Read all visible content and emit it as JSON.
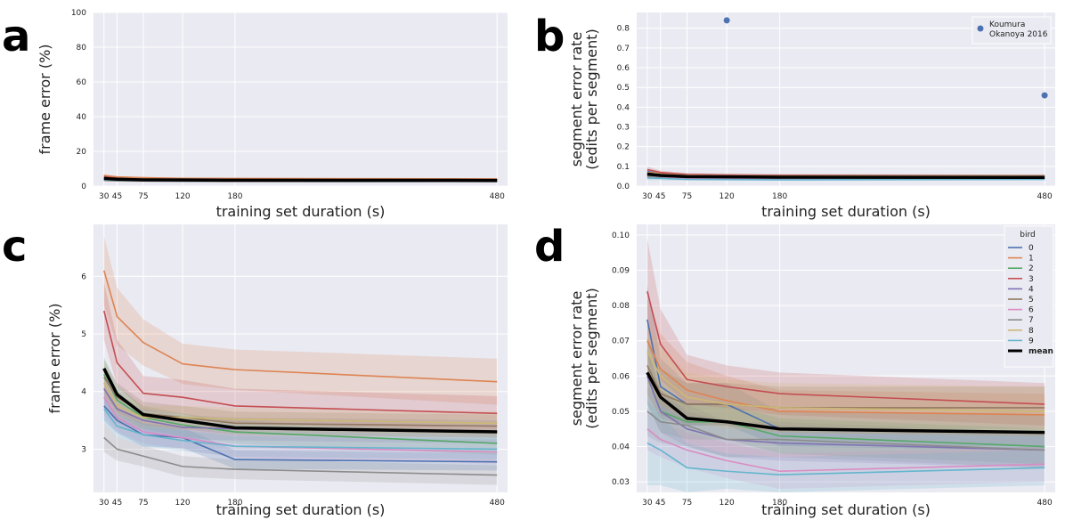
{
  "chart_data": [
    {
      "panel": "a",
      "type": "line",
      "xlabel": "training set duration (s)",
      "ylabel": "frame error (%)",
      "xticks": [
        30,
        45,
        75,
        120,
        180,
        480
      ],
      "yticks": [
        0,
        20,
        40,
        60,
        80,
        100
      ],
      "ylim": [
        0,
        100
      ],
      "x": [
        30,
        45,
        75,
        120,
        180,
        480
      ],
      "series": [
        {
          "name": "0",
          "color": "#4c72b0",
          "values": [
            3.75,
            3.5,
            3.25,
            3.2,
            2.82,
            2.78
          ],
          "band": [
            0.25,
            0.22,
            0.2,
            0.18,
            0.16,
            0.15
          ]
        },
        {
          "name": "1",
          "color": "#dd8452",
          "values": [
            6.1,
            5.3,
            4.85,
            4.48,
            4.38,
            4.17
          ],
          "band": [
            0.6,
            0.5,
            0.4,
            0.35,
            0.35,
            0.4
          ]
        },
        {
          "name": "2",
          "color": "#55a868",
          "values": [
            4.3,
            3.85,
            3.55,
            3.42,
            3.3,
            3.1
          ],
          "band": [
            0.3,
            0.25,
            0.2,
            0.2,
            0.2,
            0.2
          ]
        },
        {
          "name": "3",
          "color": "#c44e52",
          "values": [
            5.4,
            4.5,
            3.97,
            3.9,
            3.75,
            3.62
          ],
          "band": [
            0.5,
            0.4,
            0.3,
            0.3,
            0.3,
            0.3
          ]
        },
        {
          "name": "4",
          "color": "#8172b3",
          "values": [
            4.05,
            3.7,
            3.5,
            3.38,
            3.35,
            3.3
          ],
          "band": [
            0.3,
            0.25,
            0.2,
            0.2,
            0.2,
            0.2
          ]
        },
        {
          "name": "5",
          "color": "#937860",
          "values": [
            4.25,
            3.9,
            3.62,
            3.55,
            3.45,
            3.4
          ],
          "band": [
            0.3,
            0.25,
            0.2,
            0.2,
            0.2,
            0.2
          ]
        },
        {
          "name": "6",
          "color": "#da8bc3",
          "values": [
            3.9,
            3.55,
            3.3,
            3.2,
            3.05,
            2.95
          ],
          "band": [
            0.3,
            0.25,
            0.2,
            0.2,
            0.2,
            0.2
          ]
        },
        {
          "name": "7",
          "color": "#8c8c8c",
          "values": [
            3.2,
            3.0,
            2.88,
            2.7,
            2.65,
            2.55
          ],
          "band": [
            0.25,
            0.2,
            0.18,
            0.18,
            0.17,
            0.17
          ]
        },
        {
          "name": "8",
          "color": "#ccb974",
          "values": [
            4.15,
            3.75,
            3.55,
            3.55,
            3.52,
            3.45
          ],
          "band": [
            0.3,
            0.25,
            0.2,
            0.2,
            0.2,
            0.2
          ]
        },
        {
          "name": "9",
          "color": "#64b5cd",
          "values": [
            3.7,
            3.4,
            3.25,
            3.15,
            3.05,
            3.0
          ],
          "band": [
            0.25,
            0.2,
            0.2,
            0.18,
            0.18,
            0.18
          ]
        },
        {
          "name": "mean",
          "color": "#000000",
          "values": [
            4.4,
            3.95,
            3.6,
            3.5,
            3.37,
            3.3
          ],
          "band": [
            0,
            0,
            0,
            0,
            0,
            0
          ]
        }
      ]
    },
    {
      "panel": "b",
      "type": "line",
      "xlabel": "training set duration (s)",
      "ylabel": "segment error rate\n(edits per segment)",
      "xticks": [
        30,
        45,
        75,
        120,
        180,
        480
      ],
      "yticks": [
        0.0,
        0.1,
        0.2,
        0.3,
        0.4,
        0.5,
        0.6,
        0.7,
        0.8
      ],
      "ylim": [
        0,
        0.88
      ],
      "x": [
        30,
        45,
        75,
        120,
        180,
        480
      ],
      "series": [
        {
          "name": "0",
          "color": "#4c72b0",
          "values": [
            0.076,
            0.057,
            0.052,
            0.052,
            0.045,
            0.044
          ],
          "band": [
            0.01,
            0.008,
            0.006,
            0.006,
            0.005,
            0.005
          ]
        },
        {
          "name": "1",
          "color": "#dd8452",
          "values": [
            0.07,
            0.062,
            0.056,
            0.053,
            0.05,
            0.049
          ],
          "band": [
            0.012,
            0.01,
            0.008,
            0.007,
            0.006,
            0.006
          ]
        },
        {
          "name": "2",
          "color": "#55a868",
          "values": [
            0.06,
            0.05,
            0.047,
            0.047,
            0.043,
            0.04
          ],
          "band": [
            0.008,
            0.006,
            0.005,
            0.005,
            0.005,
            0.005
          ]
        },
        {
          "name": "3",
          "color": "#c44e52",
          "values": [
            0.084,
            0.069,
            0.059,
            0.057,
            0.055,
            0.052
          ],
          "band": [
            0.015,
            0.01,
            0.007,
            0.006,
            0.006,
            0.006
          ]
        },
        {
          "name": "4",
          "color": "#8172b3",
          "values": [
            0.06,
            0.05,
            0.045,
            0.042,
            0.041,
            0.039
          ],
          "band": [
            0.008,
            0.006,
            0.005,
            0.005,
            0.005,
            0.005
          ]
        },
        {
          "name": "5",
          "color": "#937860",
          "values": [
            0.063,
            0.055,
            0.052,
            0.052,
            0.051,
            0.051
          ],
          "band": [
            0.008,
            0.007,
            0.006,
            0.006,
            0.006,
            0.006
          ]
        },
        {
          "name": "6",
          "color": "#da8bc3",
          "values": [
            0.045,
            0.042,
            0.039,
            0.036,
            0.033,
            0.035
          ],
          "band": [
            0.006,
            0.005,
            0.005,
            0.005,
            0.005,
            0.005
          ]
        },
        {
          "name": "7",
          "color": "#8c8c8c",
          "values": [
            0.05,
            0.047,
            0.046,
            0.042,
            0.042,
            0.039
          ],
          "band": [
            0.007,
            0.006,
            0.006,
            0.005,
            0.005,
            0.005
          ]
        },
        {
          "name": "8",
          "color": "#ccb974",
          "values": [
            0.067,
            0.06,
            0.054,
            0.052,
            0.051,
            0.05
          ],
          "band": [
            0.009,
            0.008,
            0.007,
            0.007,
            0.007,
            0.007
          ]
        },
        {
          "name": "9",
          "color": "#64b5cd",
          "values": [
            0.041,
            0.039,
            0.034,
            0.033,
            0.032,
            0.034
          ],
          "band": [
            0.012,
            0.01,
            0.007,
            0.005,
            0.005,
            0.005
          ]
        },
        {
          "name": "mean",
          "color": "#000000",
          "values": [
            0.061,
            0.054,
            0.048,
            0.047,
            0.045,
            0.044
          ],
          "band": [
            0,
            0,
            0,
            0,
            0,
            0
          ]
        }
      ],
      "scatter": {
        "name": "Koumura\nOkanoya 2016",
        "color": "#4c72b0",
        "points": [
          [
            120,
            0.84
          ],
          [
            480,
            0.46
          ]
        ]
      }
    },
    {
      "panel": "c",
      "type": "line",
      "xlabel": "training set duration (s)",
      "ylabel": "frame error (%)",
      "xticks": [
        30,
        45,
        75,
        120,
        180,
        480
      ],
      "yticks": [
        3,
        4,
        5,
        6
      ],
      "ylim": [
        2.25,
        6.9
      ],
      "x": [
        30,
        45,
        75,
        120,
        180,
        480
      ],
      "series": [
        {
          "name": "0",
          "color": "#4c72b0",
          "values": [
            3.75,
            3.5,
            3.25,
            3.2,
            2.82,
            2.78
          ],
          "band": [
            0.25,
            0.22,
            0.2,
            0.18,
            0.16,
            0.15
          ]
        },
        {
          "name": "1",
          "color": "#dd8452",
          "values": [
            6.1,
            5.3,
            4.85,
            4.48,
            4.38,
            4.17
          ],
          "band": [
            0.6,
            0.5,
            0.4,
            0.35,
            0.35,
            0.4
          ]
        },
        {
          "name": "2",
          "color": "#55a868",
          "values": [
            4.3,
            3.85,
            3.55,
            3.42,
            3.3,
            3.1
          ],
          "band": [
            0.3,
            0.25,
            0.2,
            0.2,
            0.2,
            0.2
          ]
        },
        {
          "name": "3",
          "color": "#c44e52",
          "values": [
            5.4,
            4.5,
            3.97,
            3.9,
            3.75,
            3.62
          ],
          "band": [
            0.5,
            0.4,
            0.3,
            0.3,
            0.3,
            0.3
          ]
        },
        {
          "name": "4",
          "color": "#8172b3",
          "values": [
            4.05,
            3.7,
            3.5,
            3.38,
            3.35,
            3.3
          ],
          "band": [
            0.3,
            0.25,
            0.2,
            0.2,
            0.2,
            0.2
          ]
        },
        {
          "name": "5",
          "color": "#937860",
          "values": [
            4.25,
            3.9,
            3.62,
            3.55,
            3.45,
            3.4
          ],
          "band": [
            0.3,
            0.25,
            0.2,
            0.2,
            0.2,
            0.2
          ]
        },
        {
          "name": "6",
          "color": "#da8bc3",
          "values": [
            3.9,
            3.55,
            3.3,
            3.2,
            3.05,
            2.95
          ],
          "band": [
            0.3,
            0.25,
            0.2,
            0.2,
            0.2,
            0.2
          ]
        },
        {
          "name": "7",
          "color": "#8c8c8c",
          "values": [
            3.2,
            3.0,
            2.88,
            2.7,
            2.65,
            2.55
          ],
          "band": [
            0.25,
            0.2,
            0.18,
            0.18,
            0.17,
            0.17
          ]
        },
        {
          "name": "8",
          "color": "#ccb974",
          "values": [
            4.15,
            3.75,
            3.55,
            3.55,
            3.52,
            3.45
          ],
          "band": [
            0.3,
            0.25,
            0.2,
            0.2,
            0.2,
            0.2
          ]
        },
        {
          "name": "9",
          "color": "#64b5cd",
          "values": [
            3.7,
            3.4,
            3.25,
            3.15,
            3.05,
            3.0
          ],
          "band": [
            0.25,
            0.2,
            0.2,
            0.18,
            0.18,
            0.18
          ]
        },
        {
          "name": "mean",
          "color": "#000000",
          "values": [
            4.4,
            3.95,
            3.6,
            3.5,
            3.37,
            3.3
          ],
          "band": [
            0,
            0,
            0,
            0,
            0,
            0
          ]
        }
      ]
    },
    {
      "panel": "d",
      "type": "line",
      "xlabel": "training set duration (s)",
      "ylabel": "segment error rate\n(edits per segment)",
      "xticks": [
        30,
        45,
        75,
        120,
        180,
        480
      ],
      "yticks": [
        0.03,
        0.04,
        0.05,
        0.06,
        0.07,
        0.08,
        0.09,
        0.1
      ],
      "ylim": [
        0.027,
        0.103
      ],
      "x": [
        30,
        45,
        75,
        120,
        180,
        480
      ],
      "legend_title": "bird",
      "legend_position": "upper-right",
      "series": [
        {
          "name": "0",
          "color": "#4c72b0",
          "values": [
            0.076,
            0.057,
            0.052,
            0.052,
            0.045,
            0.044
          ],
          "band": [
            0.01,
            0.008,
            0.006,
            0.006,
            0.005,
            0.005
          ]
        },
        {
          "name": "1",
          "color": "#dd8452",
          "values": [
            0.07,
            0.062,
            0.056,
            0.053,
            0.05,
            0.049
          ],
          "band": [
            0.012,
            0.01,
            0.008,
            0.007,
            0.006,
            0.006
          ]
        },
        {
          "name": "2",
          "color": "#55a868",
          "values": [
            0.06,
            0.05,
            0.047,
            0.047,
            0.043,
            0.04
          ],
          "band": [
            0.008,
            0.006,
            0.005,
            0.005,
            0.005,
            0.005
          ]
        },
        {
          "name": "3",
          "color": "#c44e52",
          "values": [
            0.084,
            0.069,
            0.059,
            0.057,
            0.055,
            0.052
          ],
          "band": [
            0.015,
            0.01,
            0.007,
            0.006,
            0.006,
            0.006
          ]
        },
        {
          "name": "4",
          "color": "#8172b3",
          "values": [
            0.06,
            0.05,
            0.045,
            0.042,
            0.041,
            0.039
          ],
          "band": [
            0.008,
            0.006,
            0.005,
            0.005,
            0.005,
            0.005
          ]
        },
        {
          "name": "5",
          "color": "#937860",
          "values": [
            0.063,
            0.055,
            0.052,
            0.052,
            0.051,
            0.051
          ],
          "band": [
            0.008,
            0.007,
            0.006,
            0.006,
            0.006,
            0.006
          ]
        },
        {
          "name": "6",
          "color": "#da8bc3",
          "values": [
            0.045,
            0.042,
            0.039,
            0.036,
            0.033,
            0.035
          ],
          "band": [
            0.006,
            0.005,
            0.005,
            0.005,
            0.005,
            0.005
          ]
        },
        {
          "name": "7",
          "color": "#8c8c8c",
          "values": [
            0.05,
            0.047,
            0.046,
            0.042,
            0.042,
            0.039
          ],
          "band": [
            0.007,
            0.006,
            0.006,
            0.005,
            0.005,
            0.005
          ]
        },
        {
          "name": "8",
          "color": "#ccb974",
          "values": [
            0.067,
            0.06,
            0.054,
            0.052,
            0.051,
            0.05
          ],
          "band": [
            0.009,
            0.008,
            0.007,
            0.007,
            0.007,
            0.007
          ]
        },
        {
          "name": "9",
          "color": "#64b5cd",
          "values": [
            0.041,
            0.039,
            0.034,
            0.033,
            0.032,
            0.034
          ],
          "band": [
            0.012,
            0.01,
            0.007,
            0.005,
            0.005,
            0.005
          ]
        },
        {
          "name": "mean",
          "color": "#000000",
          "values": [
            0.061,
            0.054,
            0.048,
            0.047,
            0.045,
            0.044
          ],
          "band": [
            0,
            0,
            0,
            0,
            0,
            0
          ]
        }
      ]
    }
  ]
}
